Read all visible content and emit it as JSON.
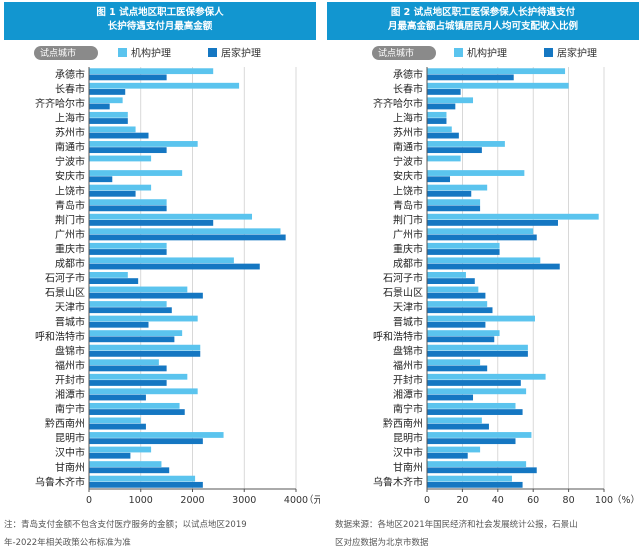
{
  "chart_data": [
    {
      "type": "bar",
      "orientation": "horizontal",
      "title_lines": [
        "图 1  试点地区职工医保参保人",
        "长护待遇支付月最高金额"
      ],
      "legend_title": "试点城市",
      "x_unit": "（元）",
      "xlim": [
        0,
        4000
      ],
      "x_ticks": [
        "0",
        "1000",
        "2000",
        "3000",
        "4000"
      ],
      "grid": true,
      "categories": [
        "承德市",
        "长春市",
        "齐齐哈尔市",
        "上海市",
        "苏州市",
        "南通市",
        "宁波市",
        "安庆市",
        "上饶市",
        "青岛市",
        "荆门市",
        "广州市",
        "重庆市",
        "成都市",
        "石河子市",
        "石景山区",
        "天津市",
        "晋城市",
        "呼和浩特市",
        "盘锦市",
        "福州市",
        "开封市",
        "湘潭市",
        "南宁市",
        "黔西南州",
        "昆明市",
        "汉中市",
        "甘南州",
        "乌鲁木齐市"
      ],
      "series": [
        {
          "name": "机构护理",
          "color": "#5bc4ee",
          "values": [
            2400,
            2900,
            650,
            750,
            900,
            2100,
            1200,
            1800,
            1200,
            1500,
            3150,
            3700,
            1500,
            2800,
            750,
            1900,
            1500,
            2100,
            1800,
            2150,
            1350,
            1900,
            2100,
            1750,
            1000,
            2600,
            1200,
            1400,
            2050
          ]
        },
        {
          "name": "居家护理",
          "color": "#1577c2",
          "values": [
            1500,
            700,
            400,
            750,
            1150,
            1500,
            0,
            450,
            900,
            1500,
            2400,
            3800,
            1500,
            3300,
            950,
            2200,
            1600,
            1150,
            1650,
            2150,
            1500,
            1500,
            1100,
            1850,
            1100,
            2200,
            800,
            1550,
            2200
          ]
        }
      ],
      "note": [
        "注：青岛支付金额不包含支付医疗服务的金额；以试点地区2019",
        "年-2022年相关政策公布标准为准"
      ]
    },
    {
      "type": "bar",
      "orientation": "horizontal",
      "title_lines": [
        "图 2  试点地区职工医保参保人长护待遇支付",
        "月最高金额占城镇居民月人均可支配收入比例"
      ],
      "legend_title": "试点城市",
      "x_unit": "（%）",
      "xlim": [
        0,
        100
      ],
      "x_ticks": [
        "0",
        "20",
        "40",
        "60",
        "80",
        "100"
      ],
      "grid": true,
      "categories": [
        "承德市",
        "长春市",
        "齐齐哈尔市",
        "上海市",
        "苏州市",
        "南通市",
        "宁波市",
        "安庆市",
        "上饶市",
        "青岛市",
        "荆门市",
        "广州市",
        "重庆市",
        "成都市",
        "石河子市",
        "石景山区",
        "天津市",
        "晋城市",
        "呼和浩特市",
        "盘锦市",
        "福州市",
        "开封市",
        "湘潭市",
        "南宁市",
        "黔西南州",
        "昆明市",
        "汉中市",
        "甘南州",
        "乌鲁木齐市"
      ],
      "series": [
        {
          "name": "机构护理",
          "color": "#5bc4ee",
          "values": [
            78,
            80,
            26,
            11,
            14,
            44,
            19,
            55,
            34,
            30,
            97,
            60,
            41,
            64,
            22,
            29,
            34,
            61,
            41,
            57,
            30,
            67,
            56,
            50,
            31,
            59,
            30,
            56,
            48
          ]
        },
        {
          "name": "居家护理",
          "color": "#1577c2",
          "values": [
            49,
            19,
            16,
            11,
            18,
            31,
            0,
            13,
            25,
            30,
            74,
            62,
            41,
            75,
            27,
            33,
            37,
            33,
            38,
            57,
            34,
            53,
            26,
            54,
            35,
            50,
            23,
            62,
            54
          ]
        }
      ],
      "note": [
        "数据来源：各地区2021年国民经济和社会发展统计公报，石景山",
        "区对应数据为北京市数据"
      ]
    }
  ]
}
